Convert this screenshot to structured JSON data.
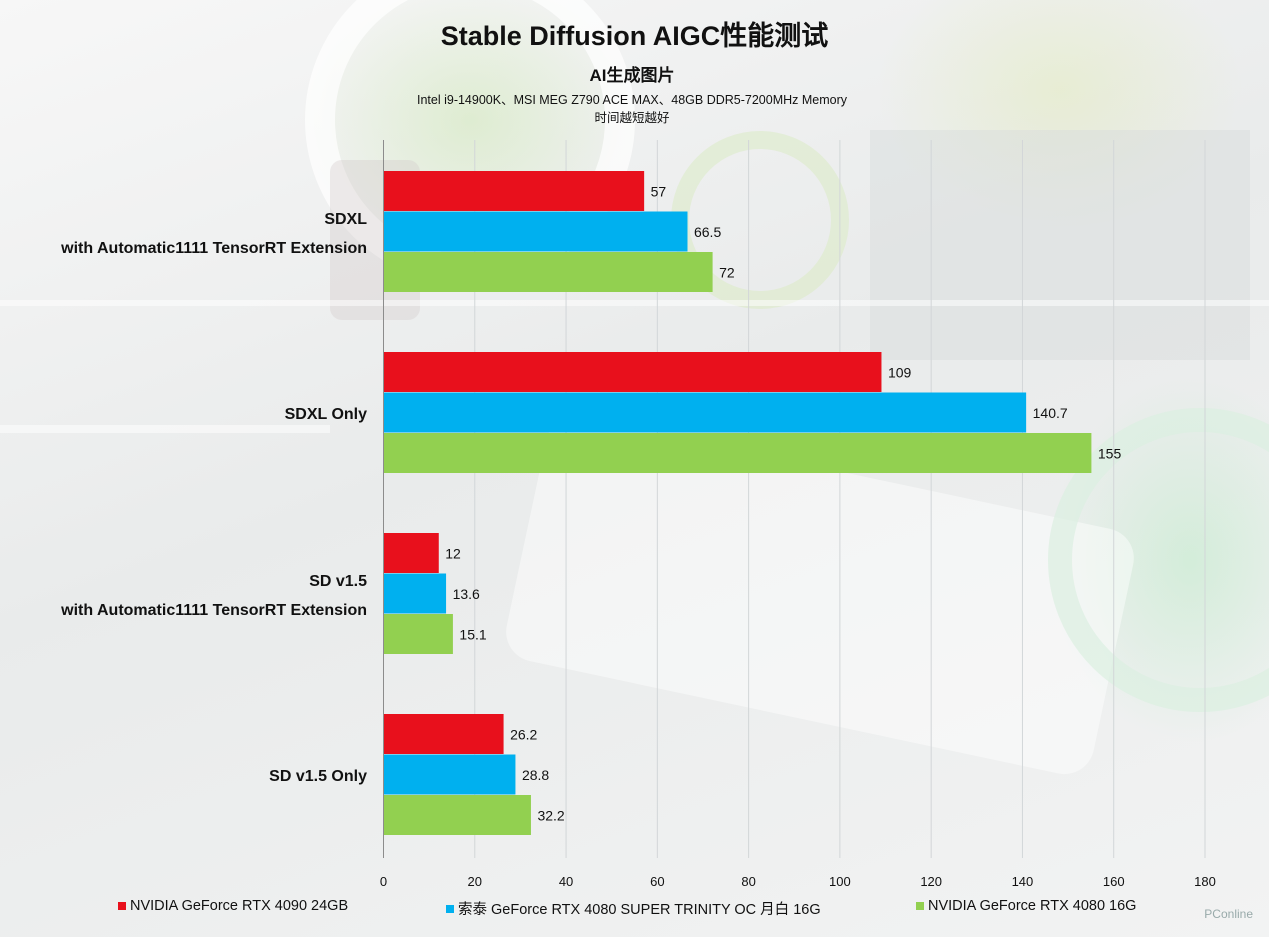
{
  "chart_data": {
    "type": "bar",
    "orientation": "horizontal",
    "title": "Stable Diffusion AIGC性能测试",
    "subtitle": "AI生成图片",
    "spec": "Intel i9-14900K、MSI MEG Z790 ACE MAX、48GB DDR5-7200MHz Memory",
    "note": "时间越短越好",
    "categories": [
      [
        "SDXL",
        "with Automatic1111 TensorRT Extension"
      ],
      [
        "SDXL Only"
      ],
      [
        "SD v1.5",
        "with Automatic1111 TensorRT Extension"
      ],
      [
        "SD v1.5 Only"
      ]
    ],
    "series": [
      {
        "name": "NVIDIA GeForce RTX 4090 24GB",
        "color": "#e8101c",
        "values": [
          57,
          109,
          12,
          26.2
        ],
        "labels": [
          "57",
          "109",
          "12",
          "26.2"
        ]
      },
      {
        "name": "索泰 GeForce RTX 4080 SUPER TRINITY OC 月白 16G",
        "color": "#00b0ef",
        "values": [
          66.5,
          140.7,
          13.6,
          28.8
        ],
        "labels": [
          "66.5",
          "140.7",
          "13.6",
          "28.8"
        ]
      },
      {
        "name": "NVIDIA GeForce RTX 4080 16G",
        "color": "#92d050",
        "values": [
          72,
          155,
          15.1,
          32.2
        ],
        "labels": [
          "72",
          "155",
          "15.1",
          "32.2"
        ]
      }
    ],
    "xlim": [
      0,
      180
    ],
    "xticks": [
      "0",
      "20",
      "40",
      "60",
      "80",
      "100",
      "120",
      "140",
      "160",
      "180"
    ],
    "grid": true,
    "legend_position": "bottom"
  },
  "watermark": "PConline"
}
